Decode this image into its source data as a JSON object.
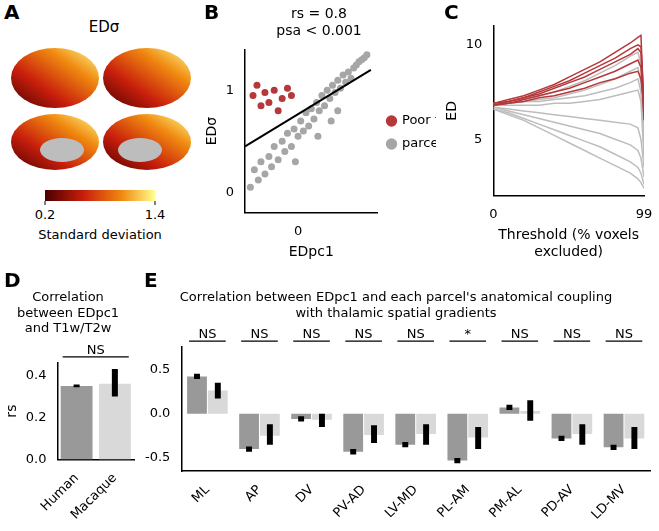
{
  "chart_data": [
    {
      "panel": "A",
      "type": "brain_map",
      "title": "EDσ",
      "colorbar": {
        "range": [
          0.2,
          1.4
        ],
        "ticks": [
          0.2,
          1.4
        ],
        "label": "Standard deviation"
      }
    },
    {
      "panel": "B",
      "type": "scatter",
      "annotations": [
        "rs = 0.8",
        "psa < 0.001"
      ],
      "x_label": "EDpc1",
      "y_label": "EDσ",
      "xlim": [
        -0.4,
        0.6
      ],
      "xticks": [
        0
      ],
      "ylim": [
        -0.2,
        1.4
      ],
      "yticks": [
        0,
        1
      ],
      "legend": "right",
      "series": [
        {
          "name": "parcel",
          "color": "#a6a6a6",
          "marker": "circle",
          "x": [
            -0.36,
            -0.33,
            -0.3,
            -0.28,
            -0.25,
            -0.22,
            -0.2,
            -0.18,
            -0.15,
            -0.12,
            -0.1,
            -0.08,
            -0.05,
            -0.03,
            0.0,
            0.02,
            0.04,
            0.06,
            0.08,
            0.1,
            0.12,
            0.14,
            0.16,
            0.18,
            0.2,
            0.22,
            0.24,
            0.26,
            0.28,
            0.3,
            0.32,
            0.34,
            0.36,
            0.38,
            0.4,
            0.42,
            0.44,
            0.46,
            0.48,
            0.5,
            0.52,
            0.3,
            0.15,
            -0.02,
            0.25
          ],
          "values": [
            0.05,
            0.22,
            0.12,
            0.3,
            0.18,
            0.35,
            0.25,
            0.45,
            0.32,
            0.5,
            0.4,
            0.58,
            0.45,
            0.62,
            0.55,
            0.7,
            0.6,
            0.78,
            0.65,
            0.82,
            0.72,
            0.88,
            0.8,
            0.95,
            0.85,
            1.0,
            0.92,
            1.05,
            0.98,
            1.1,
            1.02,
            1.15,
            1.08,
            1.18,
            1.12,
            1.22,
            1.25,
            1.28,
            1.3,
            1.32,
            1.35,
            0.8,
            0.55,
            0.3,
            0.7
          ]
        },
        {
          "name": "Poor fit",
          "color": "#b5383a",
          "marker": "circle",
          "x": [
            -0.34,
            -0.31,
            -0.28,
            -0.25,
            -0.22,
            -0.18,
            -0.15,
            -0.12,
            -0.08,
            -0.05
          ],
          "values": [
            0.95,
            1.05,
            0.85,
            0.98,
            0.88,
            1.0,
            0.8,
            0.92,
            1.02,
            0.95
          ]
        },
        {
          "type": "line",
          "color": "#000000",
          "x": [
            -0.4,
            0.55
          ],
          "values": [
            0.45,
            1.2
          ]
        }
      ]
    },
    {
      "panel": "C",
      "type": "line",
      "x_label": "Threshold (% voxels excluded)",
      "y_label": "ED",
      "x": [
        0,
        10,
        20,
        30,
        40,
        50,
        60,
        70,
        80,
        90,
        95,
        97,
        99
      ],
      "xlim": [
        0,
        99
      ],
      "xticks": [
        0,
        99
      ],
      "ylim": [
        2,
        11
      ],
      "yticks": [
        5,
        10
      ],
      "series": [
        {
          "color": "#bdbdbd",
          "values": [
            6.9,
            7.0,
            7.1,
            7.3,
            7.5,
            7.8,
            8.1,
            8.5,
            8.9,
            9.4,
            9.6,
            9.0,
            5.0
          ]
        },
        {
          "color": "#bdbdbd",
          "values": [
            6.8,
            6.9,
            7.0,
            7.1,
            7.2,
            7.4,
            7.6,
            7.9,
            8.2,
            8.6,
            8.8,
            8.0,
            4.5
          ]
        },
        {
          "color": "#bdbdbd",
          "values": [
            6.8,
            6.8,
            6.8,
            6.8,
            6.9,
            6.9,
            7.0,
            7.1,
            7.3,
            7.5,
            7.6,
            7.0,
            4.0
          ]
        },
        {
          "color": "#bdbdbd",
          "values": [
            6.7,
            6.6,
            6.5,
            6.4,
            6.3,
            6.2,
            6.1,
            6.0,
            5.9,
            5.8,
            5.6,
            5.0,
            3.5
          ]
        },
        {
          "color": "#bdbdbd",
          "values": [
            6.7,
            6.5,
            6.3,
            6.1,
            5.9,
            5.7,
            5.5,
            5.3,
            5.0,
            4.7,
            4.4,
            4.0,
            3.0
          ]
        },
        {
          "color": "#bdbdbd",
          "values": [
            6.6,
            6.4,
            6.1,
            5.8,
            5.5,
            5.2,
            4.9,
            4.6,
            4.2,
            3.8,
            3.5,
            3.2,
            2.6
          ]
        },
        {
          "color": "#bdbdbd",
          "values": [
            6.6,
            6.3,
            6.0,
            5.6,
            5.2,
            4.8,
            4.4,
            4.0,
            3.6,
            3.2,
            2.9,
            2.7,
            2.4
          ]
        },
        {
          "color": "#bdbdbd",
          "values": [
            6.9,
            6.9,
            7.0,
            7.0,
            7.1,
            7.2,
            7.3,
            7.5,
            7.7,
            8.0,
            8.2,
            7.5,
            4.8
          ]
        },
        {
          "color": "#b5383a",
          "values": [
            6.9,
            7.1,
            7.3,
            7.6,
            7.9,
            8.3,
            8.7,
            9.1,
            9.6,
            10.1,
            10.4,
            10.5,
            6.5
          ]
        },
        {
          "color": "#b5383a",
          "values": [
            6.8,
            7.0,
            7.2,
            7.4,
            7.7,
            8.0,
            8.3,
            8.7,
            9.1,
            9.5,
            9.8,
            9.6,
            6.0
          ]
        },
        {
          "color": "#b5383a",
          "values": [
            6.8,
            6.9,
            7.1,
            7.3,
            7.5,
            7.7,
            8.0,
            8.3,
            8.6,
            9.0,
            9.2,
            8.8,
            6.2
          ]
        },
        {
          "color": "#b5383a",
          "values": [
            6.9,
            7.0,
            7.2,
            7.5,
            7.8,
            8.1,
            8.5,
            8.9,
            9.3,
            9.8,
            10.0,
            9.9,
            7.0
          ]
        },
        {
          "color": "#b5383a",
          "values": [
            6.8,
            6.9,
            7.0,
            7.2,
            7.3,
            7.5,
            7.7,
            8.0,
            8.2,
            8.5,
            8.6,
            8.2,
            6.8
          ]
        }
      ]
    },
    {
      "panel": "D",
      "type": "bar",
      "title": "Correlation between EDpc1 and T1w/T2w",
      "y_label": "rs",
      "categories": [
        "Human",
        "Macaque"
      ],
      "values": [
        0.35,
        0.36
      ],
      "colors": [
        "#999999",
        "#d9d9d9"
      ],
      "errors": [
        [
          0.343,
          0.357
        ],
        [
          0.3,
          0.43
        ]
      ],
      "significance": "NS",
      "ylim": [
        0,
        0.46
      ],
      "yticks": [
        {
          "value": 0,
          "label": "0.0"
        },
        0.2,
        0.4
      ]
    },
    {
      "panel": "E",
      "type": "bar",
      "title": "Correlation between EDpc1 and each parcel's anatomical coupling with thalamic spatial gradients",
      "categories": [
        "ML",
        "AP",
        "DV",
        "PV-AD",
        "LV-MD",
        "PL-AM",
        "PM-AL",
        "PD-AV",
        "LD-MV"
      ],
      "series": [
        {
          "color": "#999999",
          "values": [
            0.42,
            -0.4,
            -0.06,
            -0.43,
            -0.35,
            -0.53,
            0.07,
            -0.28,
            -0.38
          ],
          "errors": [
            [
              0.39,
              0.45
            ],
            [
              -0.43,
              -0.37
            ],
            [
              -0.09,
              -0.03
            ],
            [
              -0.46,
              -0.4
            ],
            [
              -0.38,
              -0.32
            ],
            [
              -0.56,
              -0.5
            ],
            [
              0.04,
              0.1
            ],
            [
              -0.31,
              -0.25
            ],
            [
              -0.41,
              -0.35
            ]
          ]
        },
        {
          "color": "#d9d9d9",
          "values": [
            0.26,
            -0.25,
            -0.07,
            -0.24,
            -0.23,
            -0.27,
            0.03,
            -0.23,
            -0.28
          ],
          "errors": [
            [
              0.17,
              0.35
            ],
            [
              -0.35,
              -0.12
            ],
            [
              -0.15,
              0.0
            ],
            [
              -0.33,
              -0.13
            ],
            [
              -0.35,
              -0.12
            ],
            [
              -0.4,
              -0.15
            ],
            [
              -0.08,
              0.15
            ],
            [
              -0.35,
              -0.12
            ],
            [
              -0.4,
              -0.15
            ]
          ]
        }
      ],
      "significance": [
        "NS",
        "NS",
        "NS",
        "NS",
        "NS",
        "*",
        "NS",
        "NS",
        "NS"
      ],
      "ylim": [
        -0.65,
        0.75
      ],
      "yticks": [
        -0.5,
        {
          "value": 0,
          "label": "0.0"
        },
        0.5
      ]
    }
  ]
}
